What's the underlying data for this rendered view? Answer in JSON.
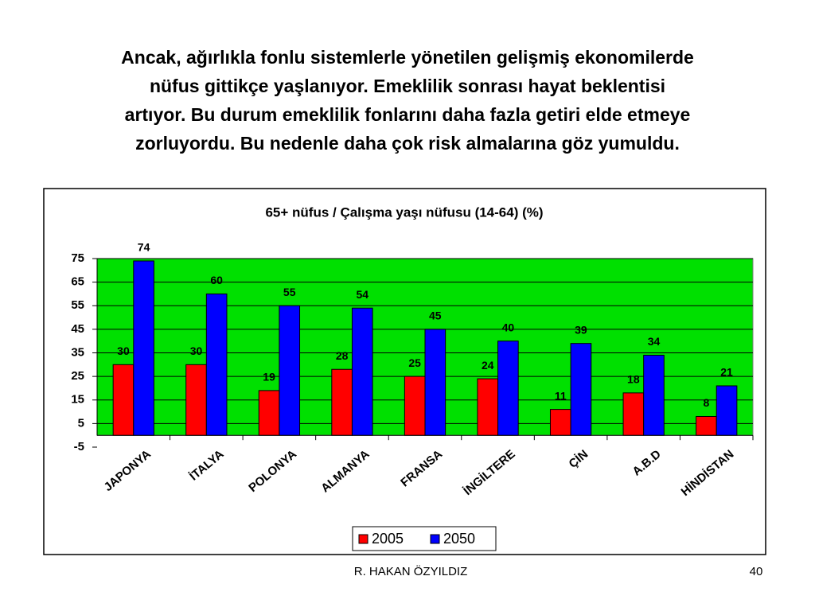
{
  "slide_title": [
    "Ancak, ağırlıkla fonlu sistemlerle yönetilen gelişmiş ekonomilerde",
    "nüfus gittikçe yaşlanıyor. Emeklilik sonrası hayat beklentisi",
    "artıyor. Bu durum emeklilik fonlarını daha fazla getiri elde etmeye",
    "zorluyordu. Bu nedenle daha çok risk almalarına göz yumuldu."
  ],
  "footer": "R. HAKAN ÖZYILDIZ",
  "page_number": "40",
  "chart_data": {
    "type": "bar",
    "title": "65+ nüfus / Çalışma yaşı nüfusu (14-64) (%)",
    "categories": [
      "JAPONYA",
      "İTALYA",
      "POLONYA",
      "ALMANYA",
      "FRANSA",
      "İNGİLTERE",
      "ÇİN",
      "A.B.D",
      "HİNDİSTAN"
    ],
    "series": [
      {
        "name": "2005",
        "color": "#ff0000",
        "values": [
          30,
          30,
          19,
          28,
          25,
          24,
          11,
          18,
          8
        ]
      },
      {
        "name": "2050",
        "color": "#0000ff",
        "values": [
          74,
          60,
          55,
          54,
          45,
          40,
          39,
          34,
          21
        ]
      }
    ],
    "ylim": [
      -5,
      75
    ],
    "yticks": [
      -5,
      5,
      15,
      25,
      35,
      45,
      55,
      65,
      75
    ],
    "grid": true,
    "plot_color": "#00e000",
    "legend": "bottom"
  }
}
